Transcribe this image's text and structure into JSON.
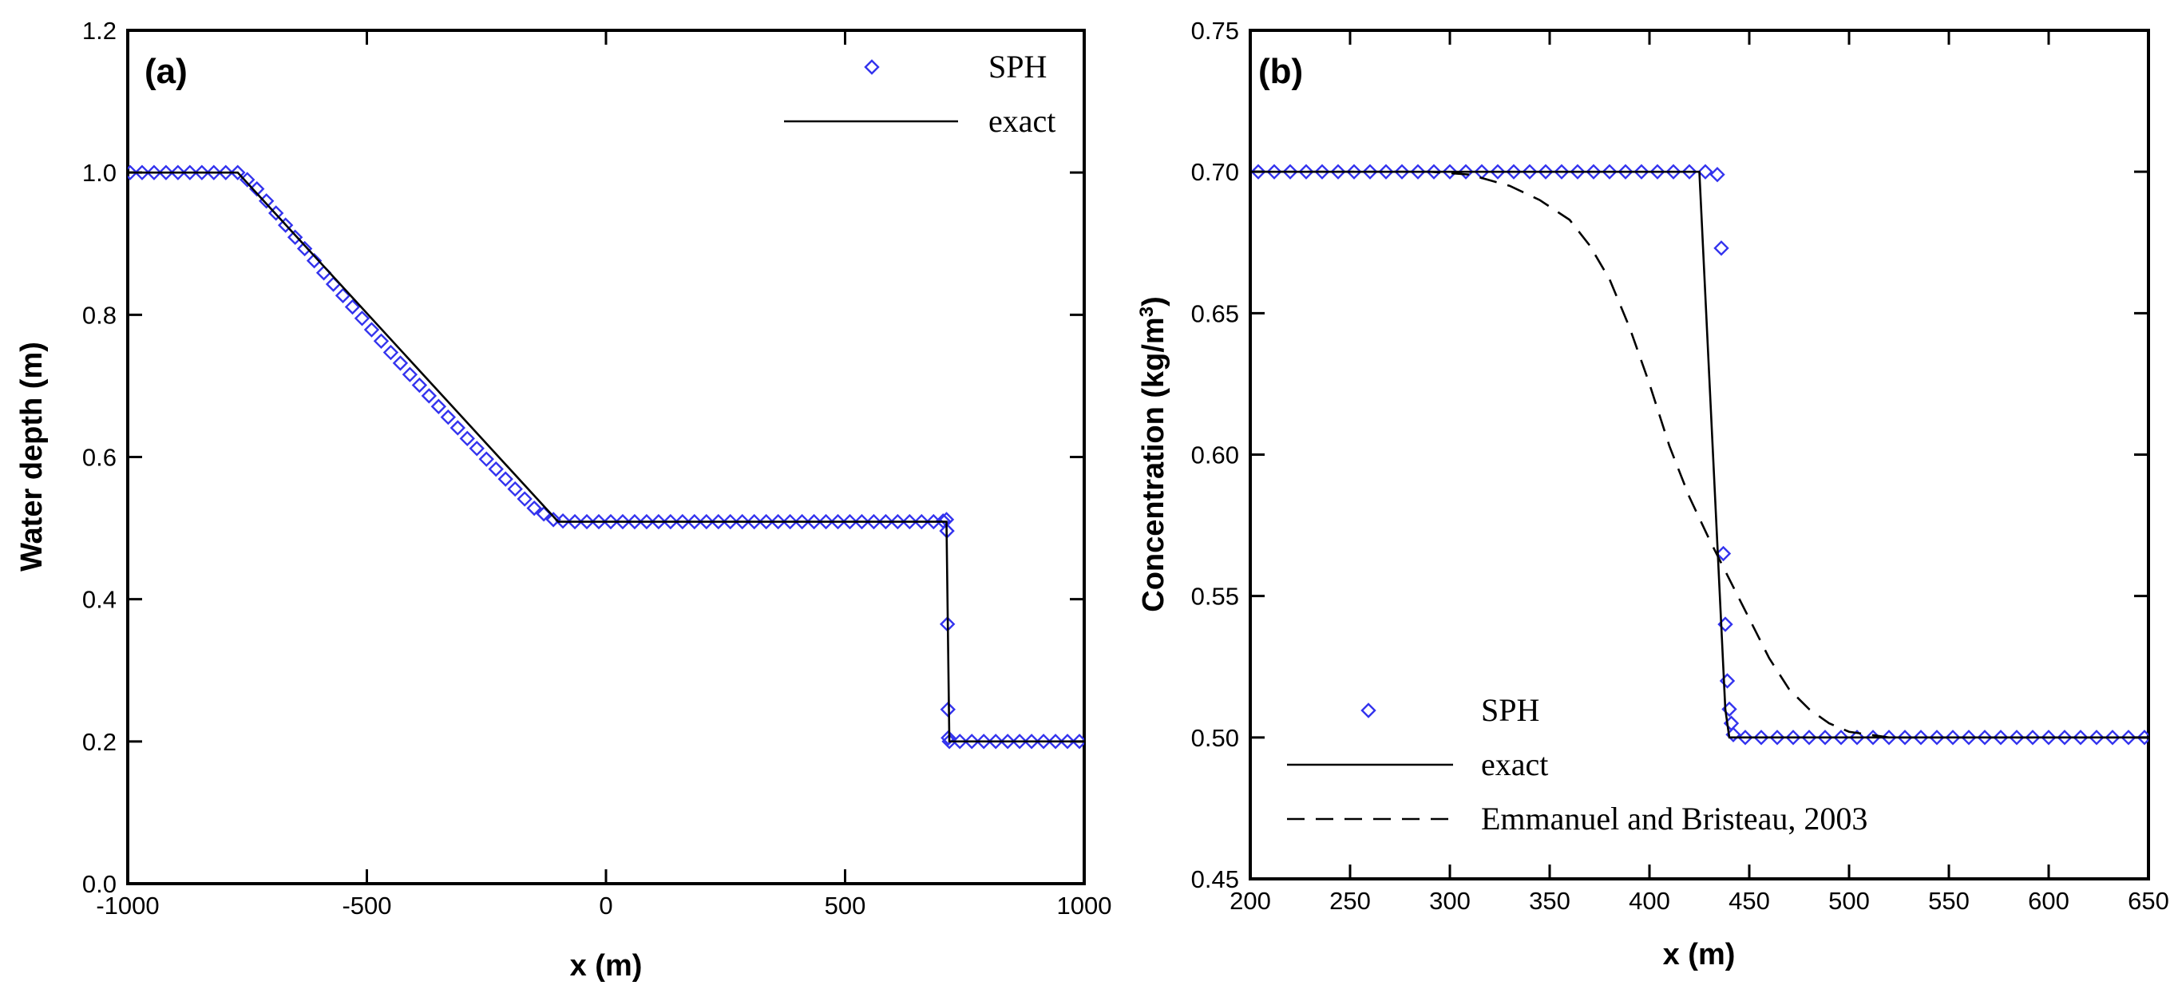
{
  "chart_data": [
    {
      "type": "line",
      "panel_label": "(a)",
      "xlabel": "x (m)",
      "ylabel": "Water depth (m)",
      "xlim": [
        -1000,
        1000
      ],
      "ylim": [
        0.0,
        1.2
      ],
      "xticks": [
        "-1000",
        "-500",
        "0",
        "500",
        "1000"
      ],
      "xtick_values": [
        -1000,
        -500,
        0,
        500,
        1000
      ],
      "yticks": [
        "0.0",
        "0.2",
        "0.4",
        "0.6",
        "0.8",
        "1.0",
        "1.2"
      ],
      "ytick_values": [
        0.0,
        0.2,
        0.4,
        0.6,
        0.8,
        1.0,
        1.2
      ],
      "legend": {
        "position": "top-right",
        "entries": [
          "SPH",
          "exact"
        ]
      },
      "series": [
        {
          "name": "SPH",
          "style": "marker",
          "color": "#3333ee",
          "x": [
            -995,
            -970,
            -945,
            -920,
            -895,
            -870,
            -845,
            -820,
            -795,
            -770,
            -750,
            -730,
            -710,
            -690,
            -670,
            -650,
            -630,
            -610,
            -590,
            -570,
            -550,
            -530,
            -510,
            -490,
            -470,
            -450,
            -430,
            -410,
            -390,
            -370,
            -350,
            -330,
            -310,
            -290,
            -270,
            -250,
            -230,
            -210,
            -190,
            -170,
            -150,
            -130,
            -110,
            -90,
            -65,
            -40,
            -15,
            10,
            35,
            60,
            85,
            110,
            135,
            160,
            185,
            210,
            235,
            260,
            285,
            310,
            335,
            360,
            385,
            410,
            435,
            460,
            485,
            510,
            535,
            560,
            585,
            610,
            635,
            660,
            685,
            705,
            712,
            713,
            714,
            715,
            716,
            718,
            740,
            765,
            790,
            815,
            840,
            865,
            890,
            915,
            940,
            965,
            990
          ],
          "y": [
            1.0,
            1.0,
            1.0,
            1.0,
            1.0,
            1.0,
            1.0,
            1.0,
            1.0,
            1.0,
            0.99,
            0.977,
            0.96,
            0.943,
            0.926,
            0.909,
            0.893,
            0.876,
            0.859,
            0.843,
            0.827,
            0.811,
            0.795,
            0.779,
            0.763,
            0.747,
            0.732,
            0.716,
            0.701,
            0.686,
            0.671,
            0.656,
            0.641,
            0.626,
            0.612,
            0.597,
            0.583,
            0.569,
            0.555,
            0.541,
            0.528,
            0.52,
            0.512,
            0.51,
            0.509,
            0.509,
            0.509,
            0.509,
            0.509,
            0.509,
            0.509,
            0.509,
            0.509,
            0.509,
            0.509,
            0.509,
            0.509,
            0.509,
            0.509,
            0.509,
            0.509,
            0.509,
            0.509,
            0.509,
            0.509,
            0.509,
            0.509,
            0.509,
            0.509,
            0.509,
            0.509,
            0.509,
            0.509,
            0.509,
            0.509,
            0.51,
            0.512,
            0.496,
            0.365,
            0.245,
            0.205,
            0.2,
            0.2,
            0.2,
            0.2,
            0.2,
            0.2,
            0.2,
            0.2,
            0.2,
            0.2,
            0.2,
            0.2
          ]
        },
        {
          "name": "exact",
          "style": "solid",
          "color": "#000000",
          "x": [
            -1000,
            -770,
            -100,
            712,
            718,
            1000
          ],
          "y": [
            1.0,
            1.0,
            0.509,
            0.509,
            0.2,
            0.2
          ]
        }
      ]
    },
    {
      "type": "line",
      "panel_label": "(b)",
      "xlabel": "x (m)",
      "ylabel": "Concentration (kg/m",
      "ylabel_superscript": "3",
      "ylabel_close": ")",
      "xlim": [
        200,
        650
      ],
      "ylim": [
        0.45,
        0.75
      ],
      "xticks": [
        "200",
        "250",
        "300",
        "350",
        "400",
        "450",
        "500",
        "550",
        "600",
        "650"
      ],
      "xtick_values": [
        200,
        250,
        300,
        350,
        400,
        450,
        500,
        550,
        600,
        650
      ],
      "yticks": [
        "0.45",
        "0.50",
        "0.55",
        "0.60",
        "0.65",
        "0.70",
        "0.75"
      ],
      "ytick_values": [
        0.45,
        0.5,
        0.55,
        0.6,
        0.65,
        0.7,
        0.75
      ],
      "legend": {
        "position": "bottom-left",
        "entries": [
          "SPH",
          "exact",
          "Emmanuel and Bristeau, 2003"
        ]
      },
      "series": [
        {
          "name": "SPH",
          "style": "marker",
          "color": "#3333ee",
          "x": [
            204,
            212,
            220,
            228,
            236,
            244,
            252,
            260,
            268,
            276,
            284,
            292,
            300,
            308,
            316,
            324,
            332,
            340,
            348,
            356,
            364,
            372,
            380,
            388,
            396,
            404,
            412,
            420,
            428,
            434,
            436,
            437,
            438,
            439,
            440,
            441,
            442,
            448,
            456,
            464,
            472,
            480,
            488,
            496,
            504,
            512,
            520,
            528,
            536,
            544,
            552,
            560,
            568,
            576,
            584,
            592,
            600,
            608,
            616,
            624,
            632,
            640,
            648
          ],
          "y": [
            0.7,
            0.7,
            0.7,
            0.7,
            0.7,
            0.7,
            0.7,
            0.7,
            0.7,
            0.7,
            0.7,
            0.7,
            0.7,
            0.7,
            0.7,
            0.7,
            0.7,
            0.7,
            0.7,
            0.7,
            0.7,
            0.7,
            0.7,
            0.7,
            0.7,
            0.7,
            0.7,
            0.7,
            0.7,
            0.699,
            0.673,
            0.565,
            0.54,
            0.52,
            0.51,
            0.505,
            0.501,
            0.5,
            0.5,
            0.5,
            0.5,
            0.5,
            0.5,
            0.5,
            0.5,
            0.5,
            0.5,
            0.5,
            0.5,
            0.5,
            0.5,
            0.5,
            0.5,
            0.5,
            0.5,
            0.5,
            0.5,
            0.5,
            0.5,
            0.5,
            0.5,
            0.5,
            0.5
          ]
        },
        {
          "name": "exact",
          "style": "solid",
          "color": "#000000",
          "x": [
            200,
            425,
            438,
            440,
            650
          ],
          "y": [
            0.7,
            0.7,
            0.51,
            0.5,
            0.5
          ]
        },
        {
          "name": "Emmanuel and Bristeau, 2003",
          "style": "dashed",
          "color": "#000000",
          "x": [
            200,
            290,
            310,
            330,
            345,
            360,
            370,
            380,
            390,
            400,
            410,
            420,
            430,
            440,
            450,
            460,
            470,
            480,
            490,
            500,
            510,
            520,
            650
          ],
          "y": [
            0.7,
            0.7,
            0.699,
            0.695,
            0.69,
            0.683,
            0.674,
            0.662,
            0.645,
            0.625,
            0.603,
            0.585,
            0.57,
            0.556,
            0.542,
            0.528,
            0.517,
            0.51,
            0.505,
            0.502,
            0.501,
            0.5,
            0.5
          ]
        }
      ]
    }
  ]
}
